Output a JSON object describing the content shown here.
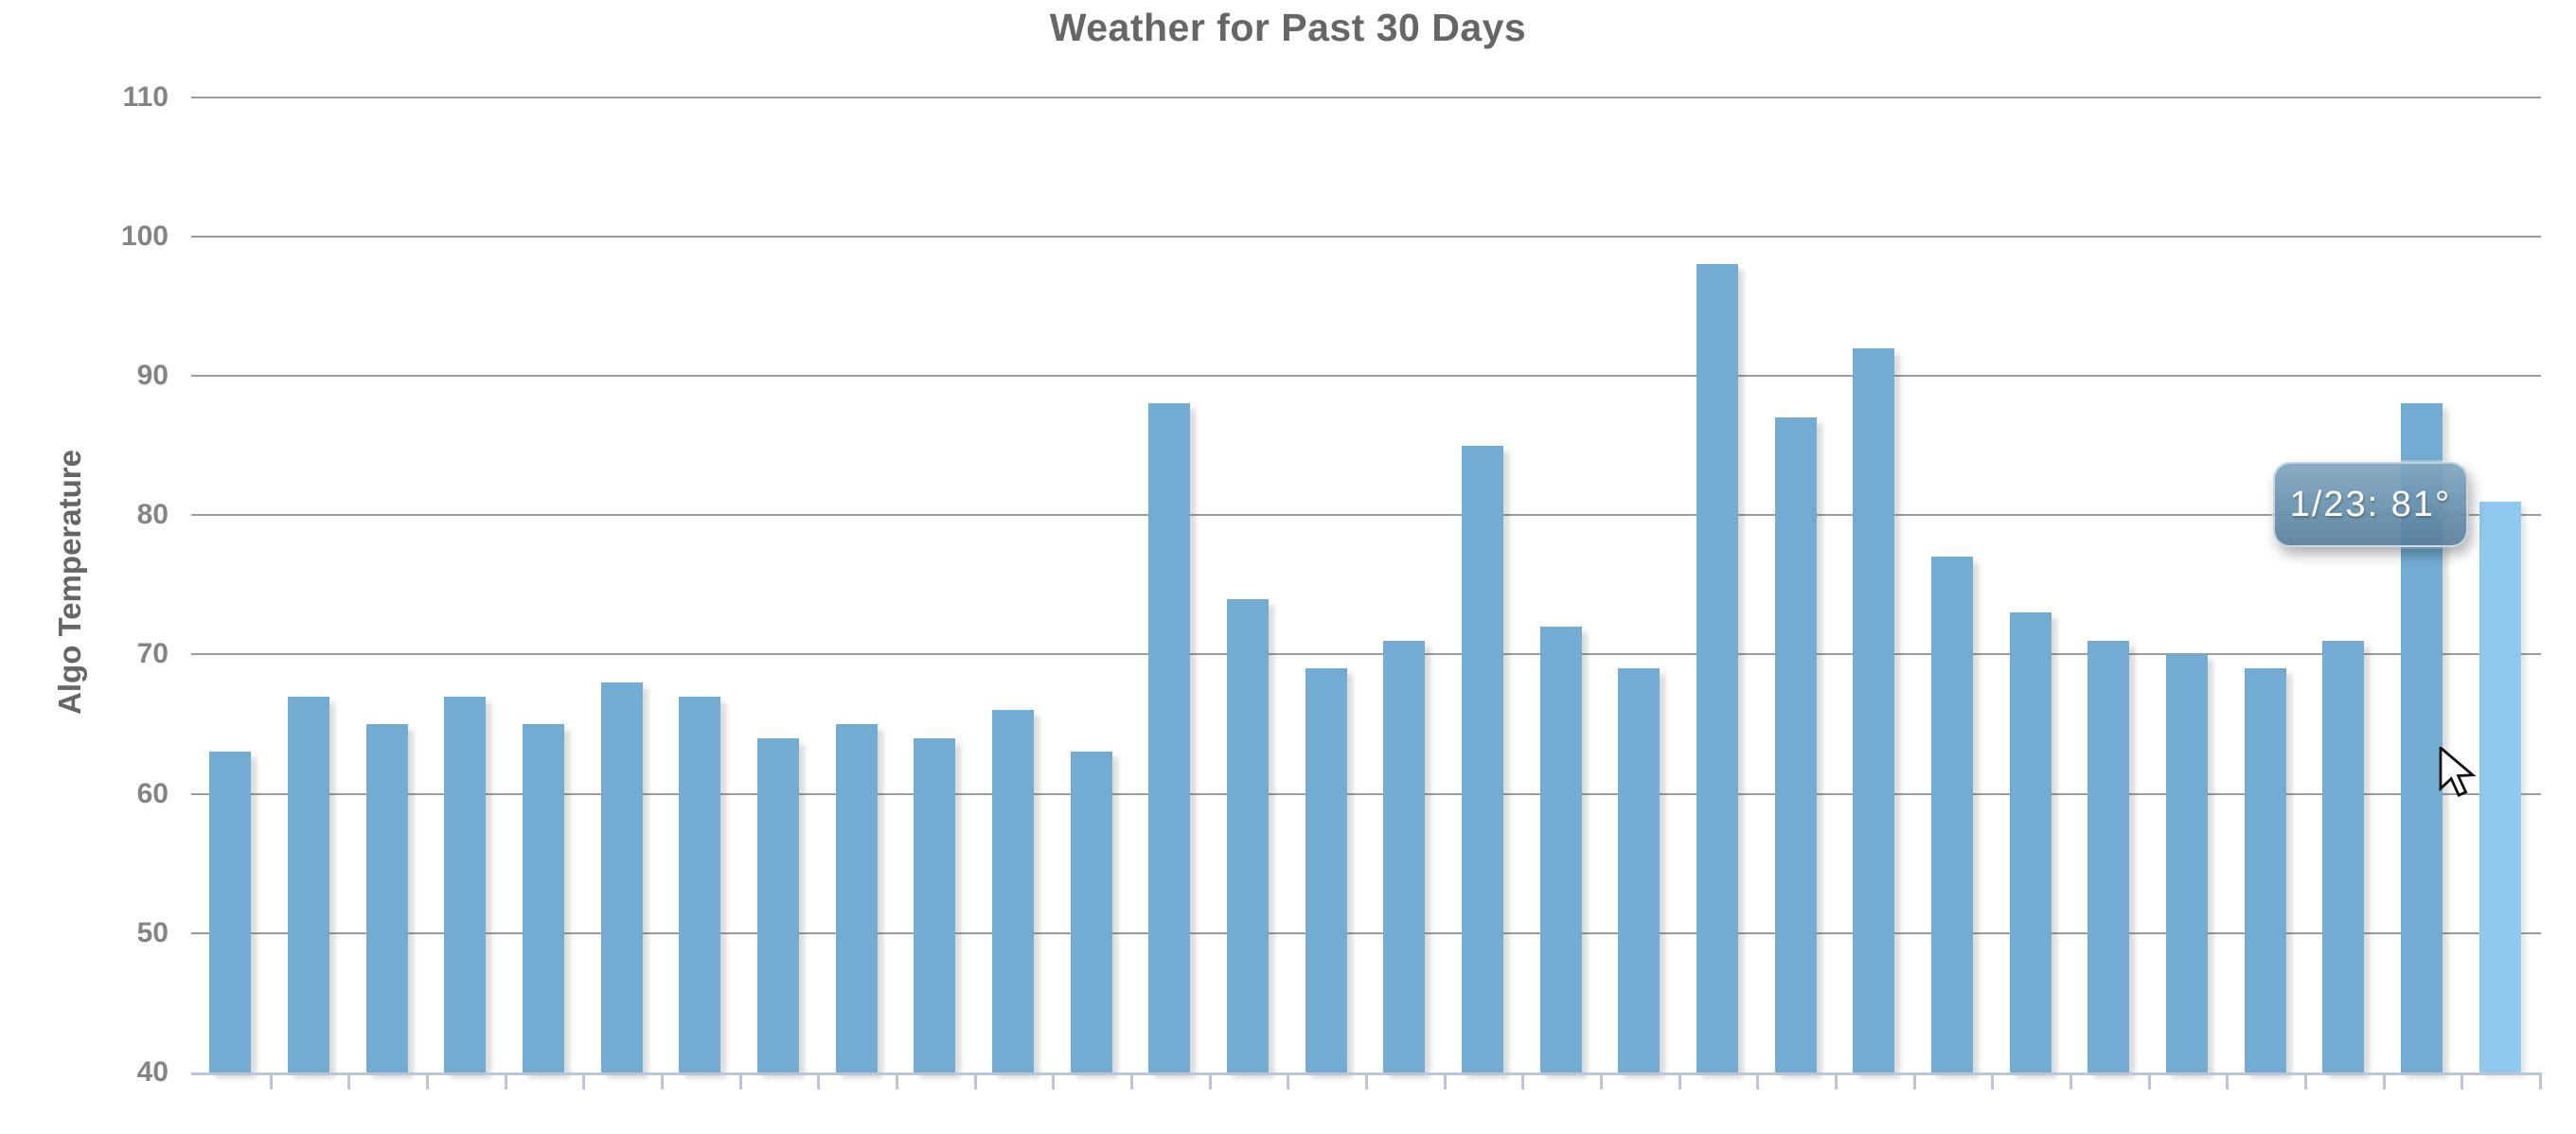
{
  "title": "Weather for Past 30 Days",
  "chart_data": {
    "type": "bar",
    "title": "Weather for Past 30 Days",
    "ylabel": "Algo Temperature",
    "xlabel": "",
    "values": [
      63,
      67,
      65,
      67,
      65,
      68,
      67,
      64,
      65,
      64,
      66,
      63,
      88,
      74,
      69,
      71,
      85,
      72,
      69,
      98,
      87,
      92,
      77,
      73,
      71,
      70,
      69,
      71,
      88,
      81
    ],
    "ylim": [
      40,
      110
    ],
    "yticks": [
      40,
      50,
      60,
      70,
      80,
      90,
      100,
      110
    ],
    "grid": true,
    "legend_position": "none",
    "x_tick_labels_visible": false,
    "highlighted_index": 29,
    "colors": {
      "bar": "#73acd2",
      "bar_highlight": "#8fc9ee",
      "gridline": "#9c9c9c",
      "axis": "#bdc6d8",
      "tick_label": "#848484",
      "title_text": "#666666",
      "tooltip_background": "#6c94b0",
      "tooltip_text": "#ffffff"
    },
    "tooltip": {
      "text": "1/23: 81°",
      "date_label": "1/23",
      "value": 81
    }
  }
}
